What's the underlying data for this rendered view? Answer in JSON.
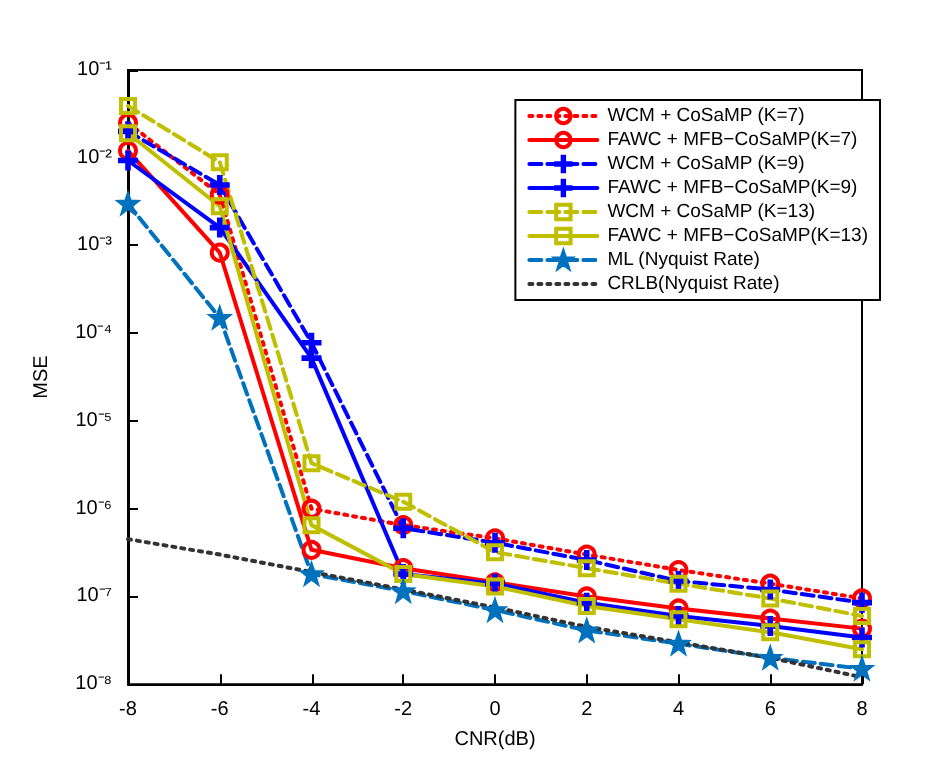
{
  "chart_data": {
    "type": "line",
    "xlabel": "CNR(dB)",
    "ylabel": "MSE",
    "x": [
      -8,
      -6,
      -4,
      -2,
      0,
      2,
      4,
      6,
      8
    ],
    "xlim": [
      -8,
      8
    ],
    "xticks": [
      -8,
      -6,
      -4,
      -2,
      0,
      2,
      4,
      6,
      8
    ],
    "log": "y",
    "ylim": [
      1e-08,
      0.1
    ],
    "yticks": [
      {
        "value": 1e-08,
        "label": "10⁻⁸"
      },
      {
        "value": 1e-07,
        "label": "10⁻⁷"
      },
      {
        "value": 1e-06,
        "label": "10⁻⁶"
      },
      {
        "value": 1e-05,
        "label": "10⁻⁵"
      },
      {
        "value": 0.0001,
        "label": "10⁻⁴"
      },
      {
        "value": 0.001,
        "label": "10⁻³"
      },
      {
        "value": 0.01,
        "label": "10⁻²"
      },
      {
        "value": 0.1,
        "label": "10⁻¹"
      }
    ],
    "grid": false,
    "legend": "top right",
    "series": [
      {
        "name": "WCM + CoSaMP (K=7)",
        "color": "#ff0000",
        "marker": "circle",
        "line_style": "dotted",
        "values": [
          0.025,
          0.0038,
          1e-06,
          6.5e-07,
          4.6e-07,
          3e-07,
          2e-07,
          1.4e-07,
          9.5e-08
        ]
      },
      {
        "name": "FAWC + MFB−CoSaMP(K=7)",
        "color": "#ff0000",
        "marker": "circle",
        "line_style": "solid",
        "values": [
          0.012,
          0.00083,
          3.4e-07,
          2.1e-07,
          1.45e-07,
          1e-07,
          7.3e-08,
          5.6e-08,
          4.3e-08
        ]
      },
      {
        "name": "WCM + CoSaMP (K=9)",
        "color": "#0000ff",
        "marker": "cross",
        "line_style": "dashed",
        "values": [
          0.02,
          0.0049,
          7.8e-05,
          6e-07,
          4.1e-07,
          2.6e-07,
          1.5e-07,
          1.2e-07,
          8.5e-08
        ]
      },
      {
        "name": "FAWC + MFB−CoSaMP(K=9)",
        "color": "#0000ff",
        "marker": "cross",
        "line_style": "solid",
        "values": [
          0.0093,
          0.0016,
          5.2e-05,
          1.8e-07,
          1.4e-07,
          8.5e-08,
          6e-08,
          4.6e-08,
          3.4e-08
        ]
      },
      {
        "name": "WCM + CoSaMP (K=13)",
        "color": "#bfbf00",
        "marker": "square",
        "line_style": "dashed",
        "values": [
          0.039,
          0.0089,
          3.3e-06,
          1.2e-06,
          3.2e-07,
          2.1e-07,
          1.4e-07,
          9.5e-08,
          6e-08
        ]
      },
      {
        "name": "FAWC + MFB−CoSaMP(K=13)",
        "color": "#bfbf00",
        "marker": "square",
        "line_style": "solid",
        "values": [
          0.019,
          0.0028,
          6.5e-07,
          1.8e-07,
          1.3e-07,
          7.8e-08,
          5.5e-08,
          3.9e-08,
          2.5e-08
        ]
      },
      {
        "name": "ML (Nyquist Rate)",
        "color": "#0072bd",
        "marker": "star",
        "line_style": "dashed",
        "values": [
          0.003,
          0.00015,
          1.8e-07,
          1.15e-07,
          7e-08,
          4.1e-08,
          2.9e-08,
          2e-08,
          1.5e-08
        ]
      },
      {
        "name": "CRLB(Nyquist Rate)",
        "color": "#333333",
        "marker": "none",
        "line_style": "dotted",
        "values": [
          4.5e-07,
          3e-07,
          1.9e-07,
          1.2e-07,
          7.5e-08,
          4.5e-08,
          3e-08,
          2e-08,
          1.2e-08
        ]
      }
    ]
  }
}
